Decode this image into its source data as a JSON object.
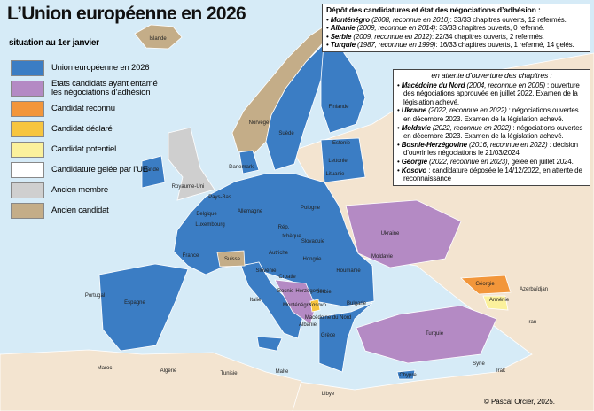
{
  "title": "L’Union européenne en 2026",
  "subtitle": "situation au 1er janvier",
  "legend": [
    {
      "label": "Union européenne en 2026",
      "color": "#3b7dc4"
    },
    {
      "label": "Etats candidats ayant entamé les négociations d’adhésion",
      "color": "#b48ac4"
    },
    {
      "label": "Candidat reconnu",
      "color": "#f2963a"
    },
    {
      "label": "Candidat déclaré",
      "color": "#f7c53f"
    },
    {
      "label": "Candidat potentiel",
      "color": "#fbf19c"
    },
    {
      "label": "Candidature gelée par l’UE",
      "color": "#ffffff"
    },
    {
      "label": "Ancien membre",
      "color": "#cfcfcf"
    },
    {
      "label": "Ancien candidat",
      "color": "#c4ad88"
    }
  ],
  "negotiations": {
    "heading": "Dépôt des candidatures et état des négociations d’adhésion :",
    "items": [
      {
        "country": "Monténégro",
        "detail": "(2008, reconnue en 2010)",
        "status": ": 33/33 chapitres ouverts, 12 refermés."
      },
      {
        "country": "Albanie",
        "detail": "(2009, reconnue en 2014)",
        "status": ": 33/33 chapitres ouverts, 0 refermé."
      },
      {
        "country": "Serbie",
        "detail": "(2009, reconnue en 2012)",
        "status": ": 22/34 chapitres ouverts, 2 refermés."
      },
      {
        "country": "Turquie",
        "detail": "(1987, reconnue en 1999)",
        "status": ": 16/33 chapitres ouverts, 1 refermé, 14 gelés."
      }
    ]
  },
  "pending": {
    "heading": "en attente d’ouverture des chapitres :",
    "items": [
      {
        "country": "Macédoine du Nord",
        "detail": "(2004, reconnue en 2005)",
        "status": " : ouverture des négociations approuvée en juillet 2022. Examen de la législation achevé."
      },
      {
        "country": "Ukraine",
        "detail": "(2022, reconnue en 2022)",
        "status": " :  négociations ouvertes en décembre 2023. Examen de la législation achevé."
      },
      {
        "country": "Moldavie",
        "detail": "(2022, reconnue en 2022)",
        "status": " : négociations ouvertes en décembre 2023. Examen de la législation achevé."
      },
      {
        "country": "Bosnie-Herzégovine",
        "detail": "(2016, reconnue en 2022)",
        "status": " : décision d’ouvrir les négociations le 21/03/2024"
      },
      {
        "country": "Géorgie",
        "detail": "(2022, reconnue en 2023)",
        "status": ", gelée en juillet 2024."
      },
      {
        "country": "Kosovo",
        "status": " : candidature déposée le 14/12/2022, en attente de reconnaissance"
      }
    ]
  },
  "map_labels": [
    "Islande",
    "Norvège",
    "Suède",
    "Finlande",
    "Estonie",
    "Lettonie",
    "Lituanie",
    "Danemark",
    "Irlande",
    "Royaume-Uni",
    "Pays-Bas",
    "Belgique",
    "Luxembourg",
    "Allemagne",
    "Pologne",
    "Rép.",
    "tchèque",
    "Slovaquie",
    "Autriche",
    "Hongrie",
    "Slovénie",
    "Croatie",
    "Bosnie-Herzégovine",
    "Serbie",
    "Monténégro",
    "Kosovo",
    "Albanie",
    "Macédoine du Nord",
    "Roumanie",
    "Moldavie",
    "Ukraine",
    "Bulgarie",
    "Grèce",
    "Turquie",
    "Chypre",
    "Malte",
    "Italie",
    "France",
    "Suisse",
    "Espagne",
    "Portugal",
    "Maroc",
    "Algérie",
    "Tunisie",
    "Libye",
    "Géorgie",
    "Arménie",
    "Azerbaïdjan",
    "Iran",
    "Irak",
    "Syrie"
  ],
  "credit": "© Pascal Orcier, 2025."
}
